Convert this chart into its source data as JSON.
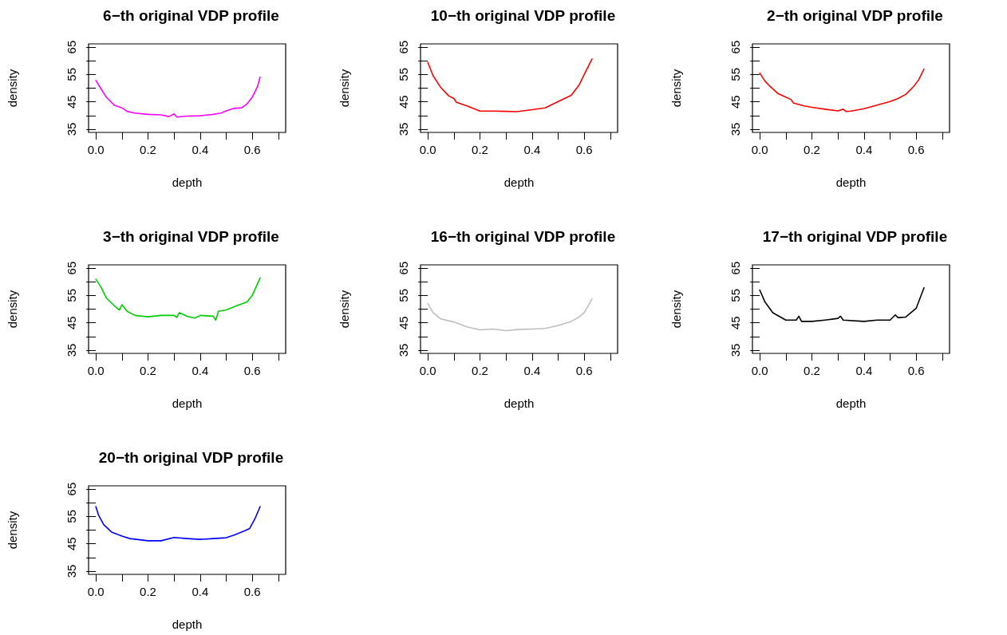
{
  "chart_data": [
    {
      "type": "line",
      "title": "6−th original VDP profile",
      "xlabel": "depth",
      "ylabel": "density",
      "xlim": [
        -0.028,
        0.728
      ],
      "ylim": [
        33.8,
        66.2
      ],
      "xticks": [
        {
          "value": 0,
          "label": "0.0"
        },
        {
          "value": 0.1,
          "label": null
        },
        {
          "value": 0.2,
          "label": "0.2"
        },
        {
          "value": 0.3,
          "label": null
        },
        {
          "value": 0.4,
          "label": "0.4"
        },
        {
          "value": 0.5,
          "label": null
        },
        {
          "value": 0.6,
          "label": "0.6"
        },
        {
          "value": 0.7,
          "label": null
        }
      ],
      "yticks": [
        35,
        {
          "value": 40,
          "label": null
        },
        45,
        {
          "value": 50,
          "label": null
        },
        55,
        {
          "value": 60,
          "label": null
        },
        65
      ],
      "x": [
        0,
        0.02,
        0.04,
        0.07,
        0.1,
        0.12,
        0.15,
        0.2,
        0.25,
        0.28,
        0.3,
        0.31,
        0.35,
        0.4,
        0.45,
        0.48,
        0.5,
        0.53,
        0.56,
        0.58,
        0.6,
        0.62,
        0.63
      ],
      "series": [
        {
          "color": "#ff00ff",
          "values": [
            52.8,
            49.7,
            46.7,
            43.8,
            42.8,
            41.5,
            40.9,
            40.4,
            40.2,
            39.6,
            40.6,
            39.4,
            39.8,
            39.9,
            40.4,
            40.9,
            41.7,
            42.6,
            42.8,
            44.3,
            46.7,
            50.6,
            54.1
          ]
        }
      ]
    },
    {
      "type": "line",
      "title": "10−th original VDP profile",
      "xlabel": "depth",
      "ylabel": "density",
      "xlim": [
        -0.028,
        0.728
      ],
      "ylim": [
        33.8,
        66.2
      ],
      "xticks": [
        {
          "value": 0,
          "label": "0.0"
        },
        {
          "value": 0.1,
          "label": null
        },
        {
          "value": 0.2,
          "label": "0.2"
        },
        {
          "value": 0.3,
          "label": null
        },
        {
          "value": 0.4,
          "label": "0.4"
        },
        {
          "value": 0.5,
          "label": null
        },
        {
          "value": 0.6,
          "label": "0.6"
        },
        {
          "value": 0.7,
          "label": null
        }
      ],
      "yticks": [
        35,
        {
          "value": 40,
          "label": null
        },
        45,
        {
          "value": 50,
          "label": null
        },
        55,
        {
          "value": 60,
          "label": null
        },
        65
      ],
      "x": [
        0,
        0.02,
        0.05,
        0.08,
        0.1,
        0.11,
        0.15,
        0.2,
        0.25,
        0.3,
        0.34,
        0.4,
        0.45,
        0.5,
        0.55,
        0.58,
        0.6,
        0.63
      ],
      "series": [
        {
          "color": "#ff0000",
          "values": [
            59.4,
            54.6,
            50.2,
            47.2,
            46.2,
            44.8,
            43.5,
            41.6,
            41.6,
            41.5,
            41.4,
            42.1,
            42.8,
            45.1,
            47.4,
            51.1,
            55,
            60.7
          ]
        }
      ]
    },
    {
      "type": "line",
      "title": "2−th original VDP profile",
      "xlabel": "depth",
      "ylabel": "density",
      "xlim": [
        -0.028,
        0.728
      ],
      "ylim": [
        33.8,
        66.2
      ],
      "xticks": [
        {
          "value": 0,
          "label": "0.0"
        },
        {
          "value": 0.1,
          "label": null
        },
        {
          "value": 0.2,
          "label": "0.2"
        },
        {
          "value": 0.3,
          "label": null
        },
        {
          "value": 0.4,
          "label": "0.4"
        },
        {
          "value": 0.5,
          "label": null
        },
        {
          "value": 0.6,
          "label": "0.6"
        },
        {
          "value": 0.7,
          "label": null
        }
      ],
      "yticks": [
        35,
        {
          "value": 40,
          "label": null
        },
        45,
        {
          "value": 50,
          "label": null
        },
        55,
        {
          "value": 60,
          "label": null
        },
        65
      ],
      "x": [
        0,
        0.02,
        0.04,
        0.07,
        0.1,
        0.12,
        0.13,
        0.17,
        0.2,
        0.25,
        0.3,
        0.32,
        0.33,
        0.35,
        0.4,
        0.45,
        0.5,
        0.53,
        0.56,
        0.59,
        0.61,
        0.63
      ],
      "series": [
        {
          "color": "#ff0000",
          "values": [
            55.5,
            52.6,
            50.6,
            48,
            46.7,
            45.8,
            44.5,
            43.5,
            43,
            42.3,
            41.7,
            42.3,
            41.5,
            41.6,
            42.5,
            43.8,
            45.1,
            46.2,
            47.7,
            50.6,
            53.1,
            57
          ]
        }
      ]
    },
    {
      "type": "line",
      "title": "3−th original VDP profile",
      "xlabel": "depth",
      "ylabel": "density",
      "xlim": [
        -0.028,
        0.728
      ],
      "ylim": [
        33.8,
        66.2
      ],
      "xticks": [
        {
          "value": 0,
          "label": "0.0"
        },
        {
          "value": 0.1,
          "label": null
        },
        {
          "value": 0.2,
          "label": "0.2"
        },
        {
          "value": 0.3,
          "label": null
        },
        {
          "value": 0.4,
          "label": "0.4"
        },
        {
          "value": 0.5,
          "label": null
        },
        {
          "value": 0.6,
          "label": "0.6"
        },
        {
          "value": 0.7,
          "label": null
        }
      ],
      "yticks": [
        35,
        {
          "value": 40,
          "label": null
        },
        45,
        {
          "value": 50,
          "label": null
        },
        55,
        {
          "value": 60,
          "label": null
        },
        65
      ],
      "x": [
        0,
        0.02,
        0.04,
        0.07,
        0.09,
        0.1,
        0.12,
        0.15,
        0.2,
        0.25,
        0.3,
        0.31,
        0.32,
        0.35,
        0.38,
        0.4,
        0.45,
        0.46,
        0.47,
        0.5,
        0.55,
        0.58,
        0.6,
        0.63
      ],
      "series": [
        {
          "color": "#00cd00",
          "values": [
            60.9,
            58,
            54.1,
            51.3,
            49.7,
            51.6,
            49.2,
            47.7,
            47.2,
            47.7,
            47.7,
            47,
            48.7,
            47.4,
            46.7,
            47.7,
            47.4,
            46,
            49.2,
            49.7,
            51.6,
            52.6,
            55,
            61.4
          ]
        }
      ]
    },
    {
      "type": "line",
      "title": "16−th original VDP profile",
      "xlabel": "depth",
      "ylabel": "density",
      "xlim": [
        -0.028,
        0.728
      ],
      "ylim": [
        33.8,
        66.2
      ],
      "xticks": [
        {
          "value": 0,
          "label": "0.0"
        },
        {
          "value": 0.1,
          "label": null
        },
        {
          "value": 0.2,
          "label": "0.2"
        },
        {
          "value": 0.3,
          "label": null
        },
        {
          "value": 0.4,
          "label": "0.4"
        },
        {
          "value": 0.5,
          "label": null
        },
        {
          "value": 0.6,
          "label": "0.6"
        },
        {
          "value": 0.7,
          "label": null
        }
      ],
      "yticks": [
        35,
        {
          "value": 40,
          "label": null
        },
        45,
        {
          "value": 50,
          "label": null
        },
        55,
        {
          "value": 60,
          "label": null
        },
        65
      ],
      "x": [
        0,
        0.02,
        0.05,
        0.1,
        0.15,
        0.2,
        0.25,
        0.3,
        0.35,
        0.4,
        0.45,
        0.5,
        0.55,
        0.58,
        0.6,
        0.63
      ],
      "series": [
        {
          "color": "#bebebe",
          "values": [
            52.1,
            48.7,
            46.4,
            45.3,
            43.5,
            42.4,
            42.7,
            42.1,
            42.6,
            42.7,
            42.9,
            44,
            45.5,
            47.1,
            48.7,
            53.7
          ]
        }
      ]
    },
    {
      "type": "line",
      "title": "17−th original VDP profile",
      "xlabel": "depth",
      "ylabel": "density",
      "xlim": [
        -0.028,
        0.728
      ],
      "ylim": [
        33.8,
        66.2
      ],
      "xticks": [
        {
          "value": 0,
          "label": "0.0"
        },
        {
          "value": 0.1,
          "label": null
        },
        {
          "value": 0.2,
          "label": "0.2"
        },
        {
          "value": 0.3,
          "label": null
        },
        {
          "value": 0.4,
          "label": "0.4"
        },
        {
          "value": 0.5,
          "label": null
        },
        {
          "value": 0.6,
          "label": "0.6"
        },
        {
          "value": 0.7,
          "label": null
        }
      ],
      "yticks": [
        35,
        {
          "value": 40,
          "label": null
        },
        45,
        {
          "value": 50,
          "label": null
        },
        55,
        {
          "value": 60,
          "label": null
        },
        65
      ],
      "x": [
        0,
        0.02,
        0.05,
        0.1,
        0.14,
        0.15,
        0.16,
        0.2,
        0.25,
        0.3,
        0.31,
        0.32,
        0.4,
        0.45,
        0.5,
        0.52,
        0.53,
        0.56,
        0.6,
        0.63
      ],
      "series": [
        {
          "color": "#000000",
          "values": [
            57,
            52.6,
            48.7,
            46,
            46,
            47.4,
            45.5,
            45.5,
            46,
            46.6,
            47.4,
            46,
            45.5,
            46,
            46,
            47.9,
            46.9,
            47.1,
            50.3,
            57.8
          ]
        }
      ]
    },
    {
      "type": "line",
      "title": "20−th original VDP profile",
      "xlabel": "depth",
      "ylabel": "density",
      "xlim": [
        -0.028,
        0.728
      ],
      "ylim": [
        33.8,
        66.2
      ],
      "xticks": [
        {
          "value": 0,
          "label": "0.0"
        },
        {
          "value": 0.1,
          "label": null
        },
        {
          "value": 0.2,
          "label": "0.2"
        },
        {
          "value": 0.3,
          "label": null
        },
        {
          "value": 0.4,
          "label": "0.4"
        },
        {
          "value": 0.5,
          "label": null
        },
        {
          "value": 0.6,
          "label": "0.6"
        },
        {
          "value": 0.7,
          "label": null
        }
      ],
      "yticks": [
        35,
        {
          "value": 40,
          "label": null
        },
        45,
        {
          "value": 50,
          "label": null
        },
        55,
        {
          "value": 60,
          "label": null
        },
        65
      ],
      "x": [
        0,
        0.01,
        0.03,
        0.06,
        0.1,
        0.13,
        0.2,
        0.25,
        0.3,
        0.35,
        0.4,
        0.45,
        0.5,
        0.53,
        0.57,
        0.59,
        0.61,
        0.63
      ],
      "series": [
        {
          "color": "#0000ff",
          "values": [
            58.6,
            55.5,
            52,
            49.3,
            47.8,
            46.9,
            46.1,
            46.1,
            47.3,
            46.9,
            46.6,
            46.9,
            47.2,
            48.2,
            49.7,
            50.6,
            54.1,
            58.6
          ]
        }
      ]
    }
  ]
}
